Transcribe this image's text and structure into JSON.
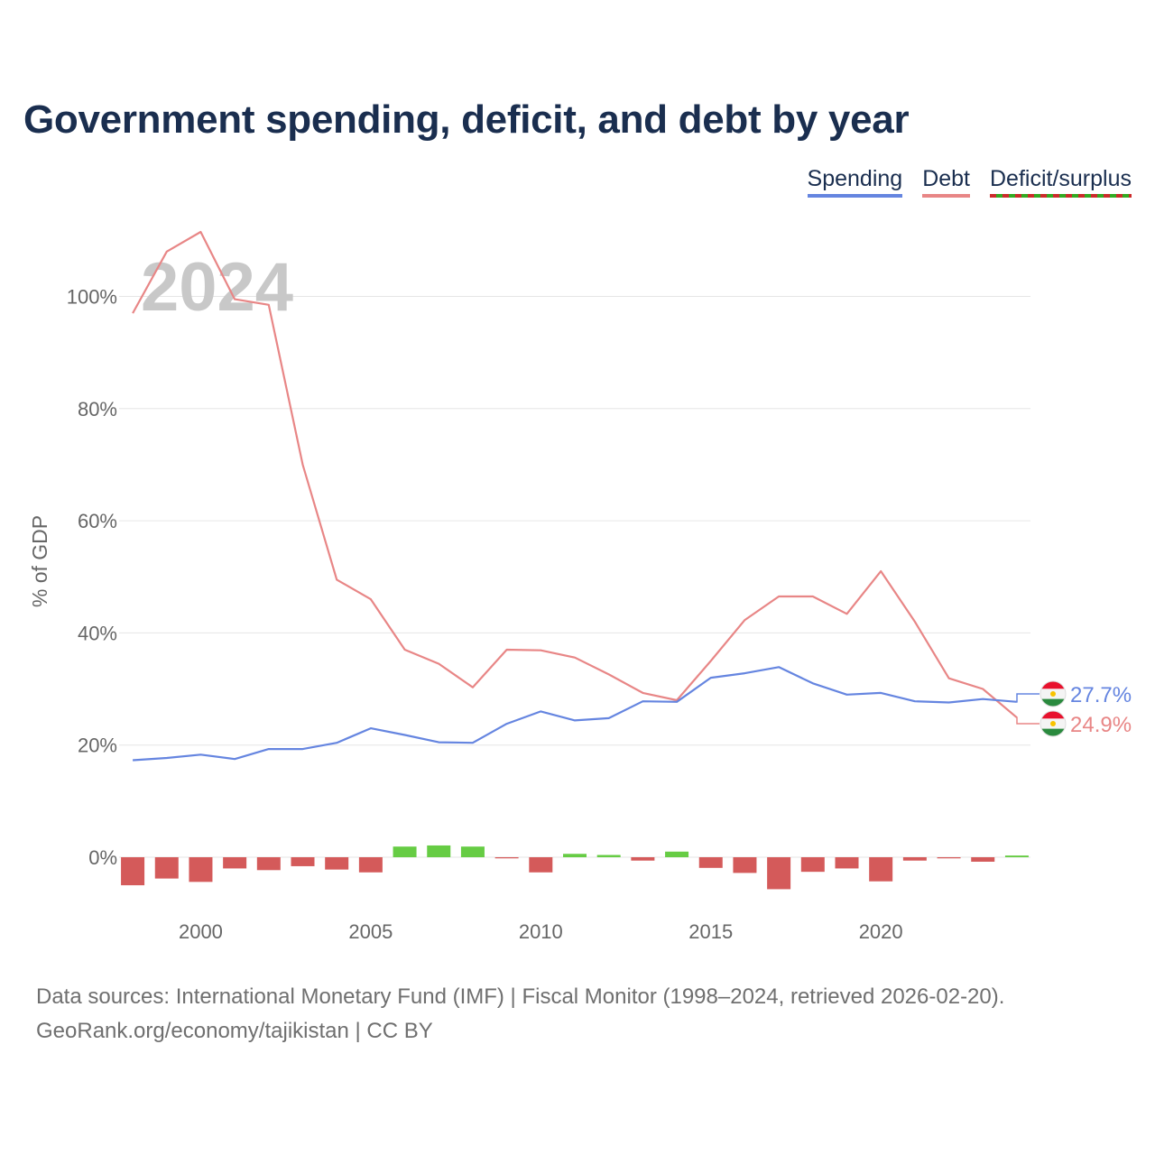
{
  "title": "Government spending, deficit, and debt by year",
  "legend": {
    "spending": "Spending",
    "debt": "Debt",
    "deficit": "Deficit/surplus"
  },
  "colors": {
    "spending": "#6585e0",
    "debt": "#e88686",
    "deficit_negative": "#d45a5a",
    "surplus_positive": "#66cc44",
    "grid": "#e6e6e6",
    "title": "#1a2e4f"
  },
  "source": {
    "line1": "Data sources: International Monetary Fund (IMF) | Fiscal Monitor (1998–2024, retrieved 2026-02-20).",
    "line2": "GeoRank.org/economy/tajikistan | CC BY"
  },
  "chart_data": {
    "type": "line",
    "title": "Government spending, deficit, and debt by year",
    "ylabel": "% of GDP",
    "xlabel": "",
    "year_label": "2024",
    "ylim": [
      -8,
      118
    ],
    "xlim": [
      1997.6,
      2024.4
    ],
    "y_ticks": [
      0,
      20,
      40,
      60,
      80,
      100
    ],
    "y_tick_labels": [
      "0%",
      "20%",
      "40%",
      "60%",
      "80%",
      "100%"
    ],
    "x_ticks": [
      2000,
      2005,
      2010,
      2015,
      2020
    ],
    "x_tick_labels": [
      "2000",
      "2005",
      "2010",
      "2015",
      "2020"
    ],
    "grid": true,
    "legend_position": "top-right",
    "x": [
      1998,
      1999,
      2000,
      2001,
      2002,
      2003,
      2004,
      2005,
      2006,
      2007,
      2008,
      2009,
      2010,
      2011,
      2012,
      2013,
      2014,
      2015,
      2016,
      2017,
      2018,
      2019,
      2020,
      2021,
      2022,
      2023,
      2024
    ],
    "series": [
      {
        "name": "Spending",
        "values": [
          17.3,
          17.7,
          18.3,
          17.5,
          19.3,
          19.3,
          20.4,
          23.0,
          21.8,
          20.5,
          20.4,
          23.8,
          26.0,
          24.4,
          24.8,
          27.8,
          27.7,
          32.0,
          32.8,
          33.9,
          31.0,
          29.0,
          29.3,
          27.8,
          27.6,
          28.2,
          27.7
        ],
        "end_label": "27.7%"
      },
      {
        "name": "Debt",
        "values": [
          97.0,
          108.0,
          111.5,
          99.5,
          98.5,
          70.0,
          49.5,
          46.0,
          37.0,
          34.5,
          30.3,
          37.0,
          36.9,
          35.6,
          32.6,
          29.3,
          28.0,
          35.0,
          42.3,
          46.5,
          46.5,
          43.4,
          51.0,
          42.0,
          31.9,
          30.0,
          24.9
        ],
        "end_label": "24.9%"
      },
      {
        "name": "Deficit/surplus",
        "values": [
          -5.0,
          -3.8,
          -4.4,
          -2.0,
          -2.3,
          -1.6,
          -2.2,
          -2.7,
          1.9,
          2.1,
          1.9,
          -0.2,
          -2.7,
          0.6,
          0.4,
          -0.6,
          1.0,
          -1.9,
          -2.8,
          -5.7,
          -2.6,
          -2.0,
          -4.3,
          -0.6,
          -0.2,
          -0.8,
          0.3
        ]
      }
    ]
  }
}
